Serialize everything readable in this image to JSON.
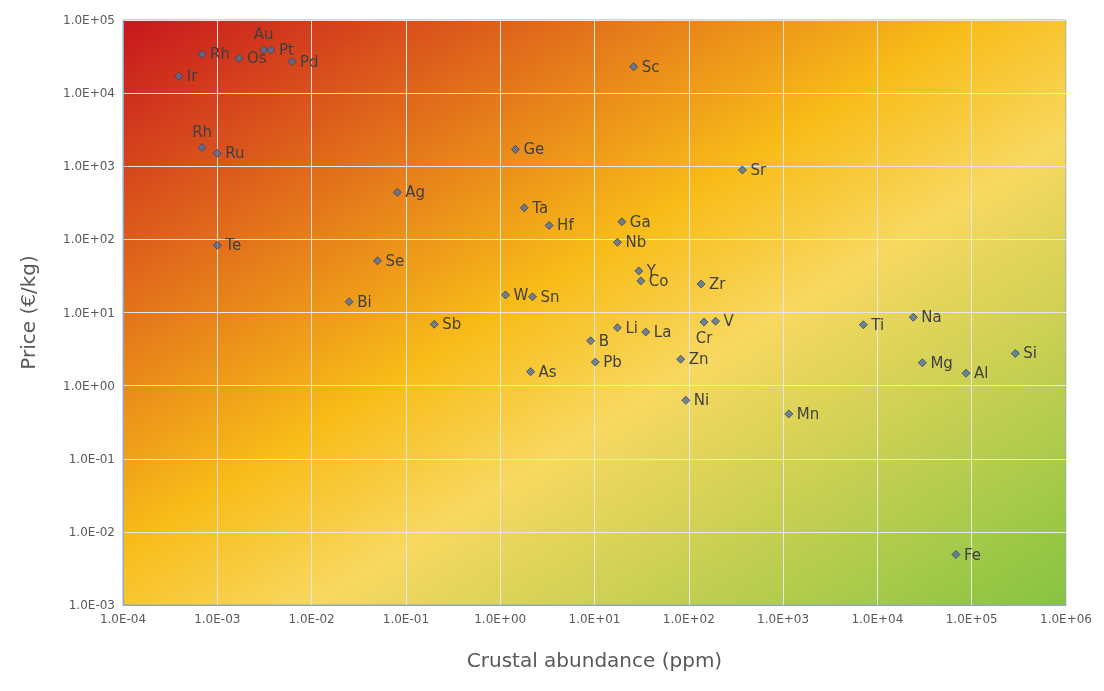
{
  "chart_data": {
    "type": "scatter",
    "xlabel": "Crustal abundance (ppm)",
    "ylabel": "Price (€/kg)",
    "x": [
      0.00039,
      0.00069,
      0.0017,
      0.0031,
      0.0037,
      0.0062,
      26,
      0.00069,
      0.001,
      1.45,
      370,
      0.081,
      1.8,
      3.3,
      19.5,
      17.5,
      0.001,
      0.05,
      29.5,
      31,
      135,
      1.14,
      2.2,
      0.025,
      0.2,
      17.5,
      35,
      145,
      192,
      7100,
      24000,
      9.1,
      10.2,
      82,
      2.1,
      30000,
      87000,
      290000,
      93,
      1150,
      68000
    ],
    "values": [
      17000,
      34000,
      30000,
      39000,
      39000,
      27000,
      23000,
      1800,
      1500,
      1700,
      890,
      440,
      270,
      155,
      174,
      91,
      83,
      51,
      37,
      27,
      24.5,
      17.4,
      16.4,
      14,
      6.9,
      6.2,
      5.4,
      7.4,
      7.6,
      6.8,
      8.6,
      4.1,
      2.1,
      2.3,
      1.55,
      2.05,
      1.48,
      2.75,
      0.63,
      0.41,
      0.0049
    ],
    "color": "#4f6f9f",
    "marker": "diamond",
    "log": "xy",
    "grid": true,
    "xlim": [
      0.0001,
      1000000
    ],
    "xticks": [
      {
        "value": 0.0001,
        "label": "1.0E-04"
      },
      {
        "value": 0.001,
        "label": "1.0E-03"
      },
      {
        "value": 0.01,
        "label": "1.0E-02"
      },
      {
        "value": 0.1,
        "label": "1.0E-01"
      },
      {
        "value": 1,
        "label": "1.0E+00"
      },
      {
        "value": 10,
        "label": "1.0E+01"
      },
      {
        "value": 100,
        "label": "1.0E+02"
      },
      {
        "value": 1000,
        "label": "1.0E+03"
      },
      {
        "value": 10000,
        "label": "1.0E+04"
      },
      {
        "value": 100000,
        "label": "1.0E+05"
      },
      {
        "value": 1000000,
        "label": "1.0E+06"
      }
    ],
    "ylim": [
      0.001,
      100000
    ],
    "yticks": [
      {
        "value": 0.001,
        "label": "1.0E-03"
      },
      {
        "value": 0.01,
        "label": "1.0E-02"
      },
      {
        "value": 0.1,
        "label": "1.0E-01"
      },
      {
        "value": 1,
        "label": "1.0E+00"
      },
      {
        "value": 10,
        "label": "1.0E+01"
      },
      {
        "value": 100,
        "label": "1.0E+02"
      },
      {
        "value": 1000,
        "label": "1.0E+03"
      },
      {
        "value": 10000,
        "label": "1.0E+04"
      },
      {
        "value": 100000,
        "label": "1.0E+05"
      }
    ],
    "annotations": [
      {
        "text": "Ir",
        "x": 0.00039,
        "y": 17000
      },
      {
        "text": "Rh",
        "x": 0.00069,
        "y": 34000
      },
      {
        "text": "Os",
        "x": 0.0017,
        "y": 30000
      },
      {
        "text": "Au",
        "x": 0.0031,
        "y": 39000
      },
      {
        "text": "Pt",
        "x": 0.0037,
        "y": 39000
      },
      {
        "text": "Pd",
        "x": 0.0062,
        "y": 27000
      },
      {
        "text": "Sc",
        "x": 26,
        "y": 23000
      },
      {
        "text": "Rh",
        "x": 0.00069,
        "y": 1800
      },
      {
        "text": "Ru",
        "x": 0.001,
        "y": 1500
      },
      {
        "text": "Ge",
        "x": 1.45,
        "y": 1700
      },
      {
        "text": "Sr",
        "x": 370,
        "y": 890
      },
      {
        "text": "Ag",
        "x": 0.081,
        "y": 440
      },
      {
        "text": "Ta",
        "x": 1.8,
        "y": 270
      },
      {
        "text": "Hf",
        "x": 3.3,
        "y": 155
      },
      {
        "text": "Ga",
        "x": 19.5,
        "y": 174
      },
      {
        "text": "Nb",
        "x": 17.5,
        "y": 91
      },
      {
        "text": "Te",
        "x": 0.001,
        "y": 83
      },
      {
        "text": "Se",
        "x": 0.05,
        "y": 51
      },
      {
        "text": "Y",
        "x": 29.5,
        "y": 37
      },
      {
        "text": "Co",
        "x": 31,
        "y": 27
      },
      {
        "text": "Zr",
        "x": 135,
        "y": 24.5
      },
      {
        "text": "W",
        "x": 1.14,
        "y": 17.4
      },
      {
        "text": "Sn",
        "x": 2.2,
        "y": 16.4
      },
      {
        "text": "Bi",
        "x": 0.025,
        "y": 14
      },
      {
        "text": "Sb",
        "x": 0.2,
        "y": 6.9
      },
      {
        "text": "Li",
        "x": 17.5,
        "y": 6.2
      },
      {
        "text": "La",
        "x": 35,
        "y": 5.4
      },
      {
        "text": "Cr",
        "x": 145,
        "y": 7.4
      },
      {
        "text": "V",
        "x": 192,
        "y": 7.6
      },
      {
        "text": "Ti",
        "x": 7100,
        "y": 6.8
      },
      {
        "text": "Na",
        "x": 24000,
        "y": 8.6
      },
      {
        "text": "B",
        "x": 9.1,
        "y": 4.1
      },
      {
        "text": "Pb",
        "x": 10.2,
        "y": 2.1
      },
      {
        "text": "Zn",
        "x": 82,
        "y": 2.3
      },
      {
        "text": "As",
        "x": 2.1,
        "y": 1.55
      },
      {
        "text": "Mg",
        "x": 30000,
        "y": 2.05
      },
      {
        "text": "Al",
        "x": 87000,
        "y": 1.48
      },
      {
        "text": "Si",
        "x": 290000,
        "y": 2.75
      },
      {
        "text": "Ni",
        "x": 93,
        "y": 0.63
      },
      {
        "text": "Mn",
        "x": 1150,
        "y": 0.41
      },
      {
        "text": "Fe",
        "x": 68000,
        "y": 0.0049
      }
    ]
  }
}
